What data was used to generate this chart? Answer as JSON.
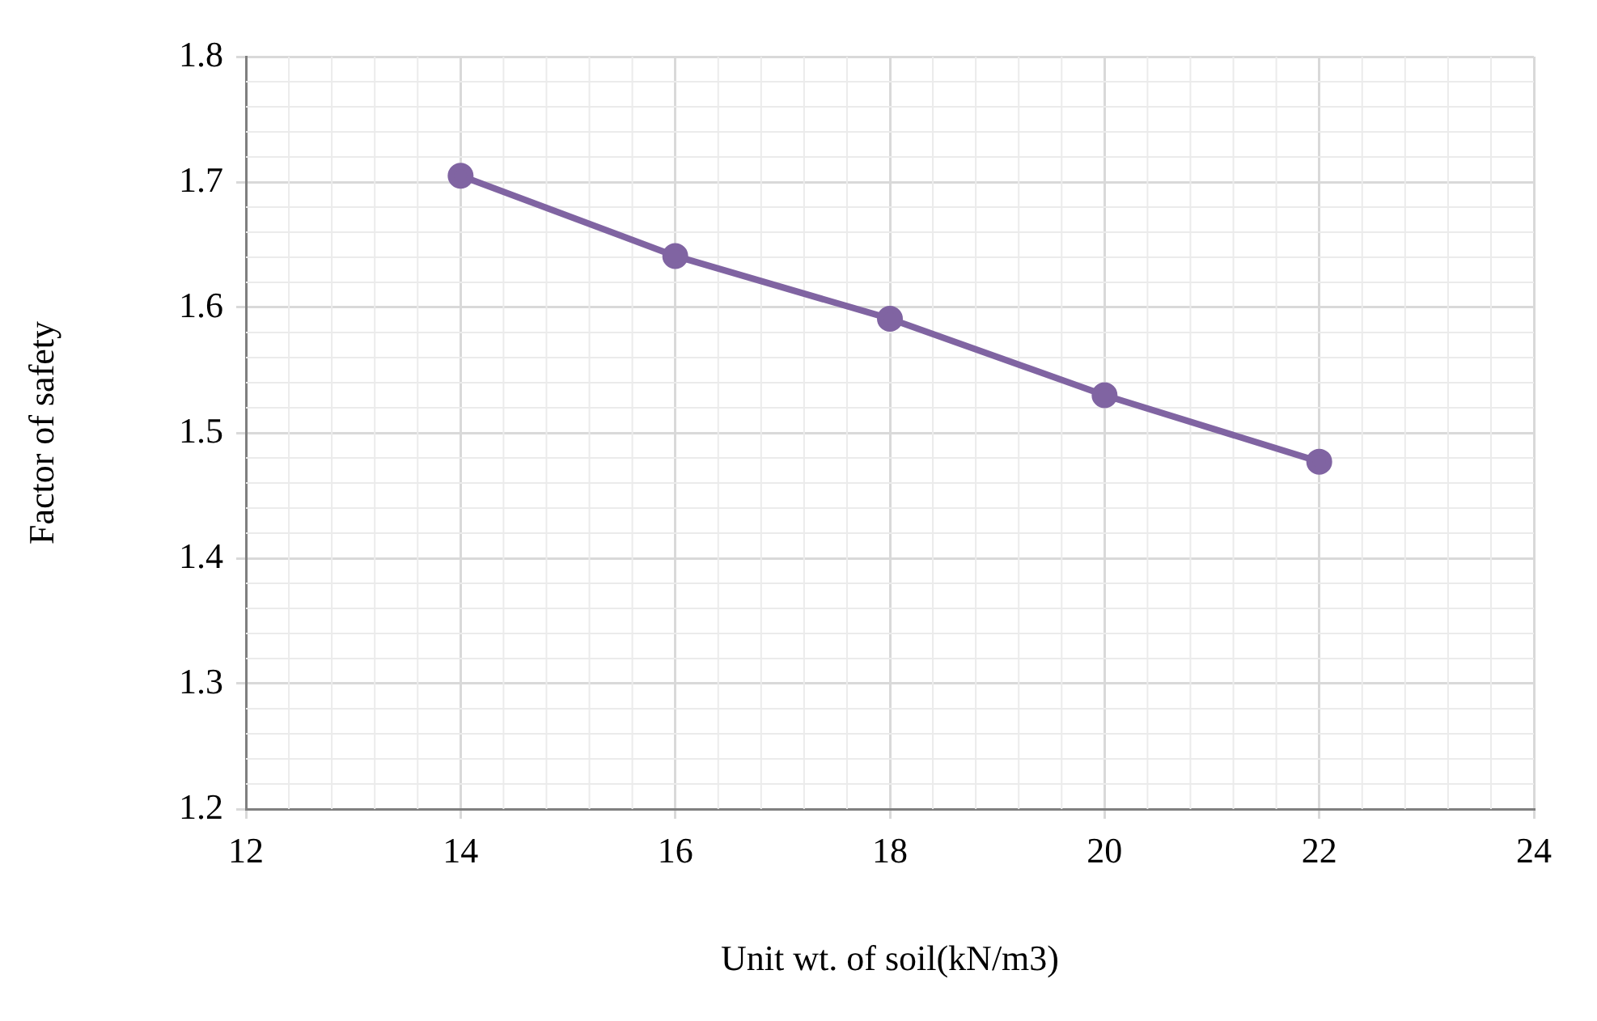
{
  "chart_data": {
    "type": "line",
    "xlabel": "Unit wt. of soil(kN/m3)",
    "ylabel": "Factor of safety",
    "x": [
      14,
      16,
      18,
      20,
      22
    ],
    "series": [
      {
        "color": "#8064a2",
        "values": [
          1.705,
          1.641,
          1.591,
          1.53,
          1.477
        ]
      }
    ],
    "xlim": [
      12,
      24
    ],
    "xticks": [
      12,
      14,
      16,
      18,
      20,
      22,
      24
    ],
    "ylim": [
      1.2,
      1.8
    ],
    "yticks": [
      1.2,
      1.3,
      1.4,
      1.5,
      1.6,
      1.7,
      1.8
    ],
    "grid": true,
    "marker": "circle",
    "line_style": "solid",
    "legend": false
  }
}
